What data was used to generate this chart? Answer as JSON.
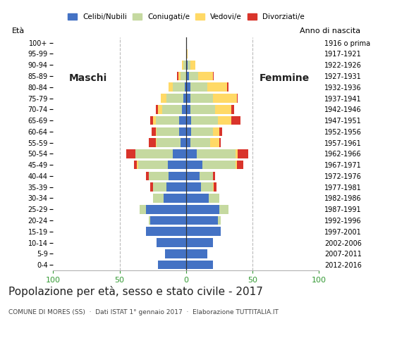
{
  "age_groups": [
    "0-4",
    "5-9",
    "10-14",
    "15-19",
    "20-24",
    "25-29",
    "30-34",
    "35-39",
    "40-44",
    "45-49",
    "50-54",
    "55-59",
    "60-64",
    "65-69",
    "70-74",
    "75-79",
    "80-84",
    "85-89",
    "90-94",
    "95-99",
    "100+"
  ],
  "birth_years": [
    "2012-2016",
    "2007-2011",
    "2002-2006",
    "1997-2001",
    "1992-1996",
    "1987-1991",
    "1982-1986",
    "1977-1981",
    "1972-1976",
    "1967-1971",
    "1962-1966",
    "1957-1961",
    "1952-1956",
    "1947-1951",
    "1942-1946",
    "1937-1941",
    "1932-1936",
    "1927-1931",
    "1922-1926",
    "1917-1921",
    "1916 o prima"
  ],
  "male_celibe": [
    21,
    16,
    22,
    30,
    27,
    30,
    17,
    15,
    13,
    14,
    10,
    4,
    5,
    5,
    3,
    2,
    1,
    0,
    0,
    0,
    0
  ],
  "male_coniugato": [
    0,
    0,
    0,
    0,
    1,
    5,
    8,
    10,
    15,
    22,
    28,
    18,
    17,
    18,
    15,
    13,
    9,
    4,
    2,
    0,
    0
  ],
  "male_vedovo": [
    0,
    0,
    0,
    0,
    0,
    0,
    0,
    0,
    0,
    1,
    0,
    1,
    1,
    2,
    3,
    4,
    3,
    2,
    1,
    0,
    0
  ],
  "male_divorziato": [
    0,
    0,
    0,
    0,
    0,
    0,
    0,
    2,
    2,
    2,
    7,
    5,
    3,
    2,
    2,
    0,
    0,
    1,
    0,
    0,
    0
  ],
  "female_celibe": [
    20,
    16,
    20,
    26,
    24,
    25,
    17,
    11,
    10,
    12,
    8,
    3,
    4,
    4,
    3,
    3,
    3,
    2,
    1,
    0,
    0
  ],
  "female_coniugata": [
    0,
    0,
    0,
    0,
    2,
    7,
    8,
    9,
    10,
    25,
    29,
    15,
    16,
    20,
    19,
    17,
    13,
    7,
    2,
    0,
    0
  ],
  "female_vedova": [
    0,
    0,
    0,
    0,
    0,
    0,
    0,
    1,
    0,
    1,
    2,
    7,
    5,
    10,
    12,
    18,
    15,
    11,
    4,
    1,
    0
  ],
  "female_divorziata": [
    0,
    0,
    0,
    0,
    0,
    0,
    0,
    2,
    2,
    5,
    8,
    1,
    2,
    7,
    2,
    1,
    1,
    1,
    0,
    0,
    0
  ],
  "color_celibe": "#4472c4",
  "color_coniugato": "#c5d9a0",
  "color_vedovo": "#ffd966",
  "color_divorziato": "#d9342b",
  "title": "Popolazione per età, sesso e stato civile - 2017",
  "subtitle": "COMUNE DI MORES (SS)  ·  Dati ISTAT 1° gennaio 2017  ·  Elaborazione TUTTITALIA.IT",
  "ylabel_left": "Età",
  "ylabel_right": "Anno di nascita",
  "xlim": [
    -100,
    100
  ],
  "bg_color": "#ffffff",
  "grid_color": "#cccccc",
  "label_maschi": "Maschi",
  "label_femmine": "Femmine"
}
